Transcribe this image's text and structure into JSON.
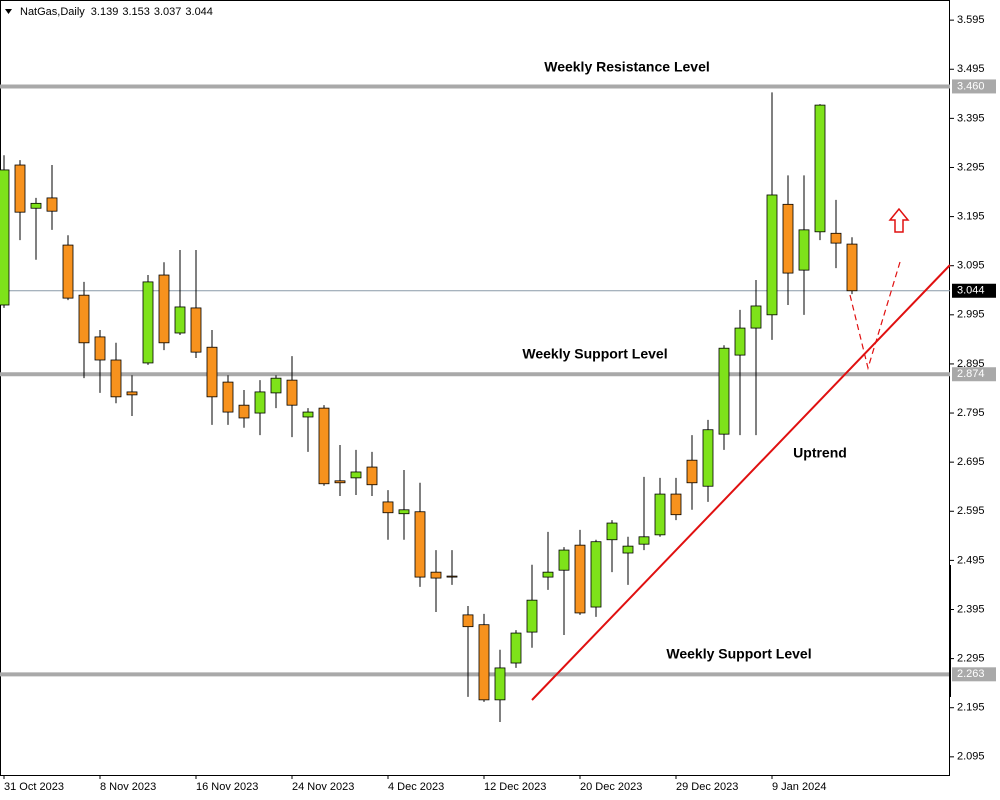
{
  "chart_data": {
    "type": "candlestick",
    "title": "NatGas,Daily",
    "categories": [
      "31 Oct 2023",
      null,
      null,
      null,
      null,
      null,
      "8 Nov 2023",
      null,
      null,
      null,
      null,
      null,
      "16 Nov 2023",
      null,
      null,
      null,
      null,
      null,
      "24 Nov 2023",
      null,
      null,
      null,
      null,
      null,
      "4 Dec 2023",
      null,
      null,
      null,
      null,
      null,
      "12 Dec 2023",
      null,
      null,
      null,
      null,
      null,
      "20 Dec 2023",
      null,
      null,
      null,
      null,
      null,
      "29 Dec 2023",
      null,
      null,
      null,
      null,
      null,
      "9 Jan 2024",
      null,
      null,
      null,
      null,
      null
    ],
    "open": [
      3.015,
      3.3,
      3.212,
      3.233,
      3.137,
      3.035,
      2.95,
      2.903,
      2.838,
      2.897,
      3.076,
      2.958,
      3.009,
      2.929,
      2.858,
      2.811,
      2.795,
      2.836,
      2.862,
      2.787,
      2.805,
      2.657,
      2.663,
      2.685,
      2.614,
      2.59,
      2.594,
      2.471,
      2.463,
      2.384,
      2.364,
      2.211,
      2.286,
      2.349,
      2.461,
      2.475,
      2.526,
      2.4,
      2.537,
      2.51,
      2.528,
      2.547,
      2.63,
      2.699,
      2.646,
      2.752,
      2.913,
      2.968,
      2.995,
      3.22,
      3.086,
      3.164,
      3.161,
      3.139
    ],
    "high": [
      3.32,
      3.31,
      3.233,
      3.3,
      3.157,
      3.062,
      2.964,
      2.938,
      2.872,
      3.076,
      3.102,
      3.127,
      3.127,
      2.964,
      2.872,
      2.842,
      2.862,
      2.872,
      2.911,
      2.805,
      2.811,
      2.73,
      2.72,
      2.716,
      2.638,
      2.679,
      2.653,
      2.516,
      2.516,
      2.402,
      2.386,
      2.313,
      2.353,
      2.486,
      2.553,
      2.522,
      2.557,
      2.537,
      2.577,
      2.543,
      2.665,
      2.663,
      2.663,
      2.75,
      2.781,
      2.933,
      3.005,
      3.066,
      3.448,
      3.279,
      3.279,
      3.424,
      3.229,
      3.153
    ],
    "low": [
      3.009,
      3.147,
      3.107,
      3.168,
      3.025,
      2.866,
      2.836,
      2.815,
      2.789,
      2.893,
      2.923,
      2.954,
      2.907,
      2.771,
      2.771,
      2.765,
      2.75,
      2.805,
      2.746,
      2.716,
      2.647,
      2.626,
      2.628,
      2.626,
      2.537,
      2.537,
      2.441,
      2.39,
      2.445,
      2.217,
      2.207,
      2.166,
      2.276,
      2.317,
      2.435,
      2.343,
      2.384,
      2.38,
      2.471,
      2.445,
      2.516,
      2.543,
      2.577,
      2.598,
      2.614,
      2.72,
      2.75,
      2.75,
      2.944,
      3.015,
      2.995,
      3.147,
      3.09,
      3.037
    ],
    "close": [
      3.29,
      3.204,
      3.222,
      3.206,
      3.029,
      2.938,
      2.903,
      2.828,
      2.832,
      3.062,
      2.938,
      3.011,
      2.919,
      2.828,
      2.797,
      2.785,
      2.838,
      2.866,
      2.811,
      2.797,
      2.651,
      2.653,
      2.675,
      2.649,
      2.592,
      2.598,
      2.461,
      2.459,
      2.461,
      2.36,
      2.211,
      2.276,
      2.347,
      2.414,
      2.471,
      2.516,
      2.388,
      2.533,
      2.571,
      2.524,
      2.543,
      2.63,
      2.588,
      2.653,
      2.761,
      2.927,
      2.968,
      3.013,
      3.239,
      3.08,
      3.168,
      3.422,
      3.141,
      3.044
    ],
    "up_color": "#7ee21a",
    "down_color": "#f7921e",
    "ylim": [
      2.058,
      3.636
    ],
    "yticks": [
      3.595,
      3.495,
      3.395,
      3.295,
      3.195,
      3.095,
      2.995,
      2.895,
      2.795,
      2.695,
      2.595,
      2.495,
      2.395,
      2.295,
      2.195,
      2.095
    ],
    "hlines": [
      {
        "label": "Weekly Resistance Level",
        "value": 3.46,
        "value_label": "3.460"
      },
      {
        "label": "Weekly Support Level",
        "value": 2.874
      },
      {
        "label": "Weekly Support Level",
        "value": 2.263
      }
    ],
    "annotation": "Uptrend"
  }
}
